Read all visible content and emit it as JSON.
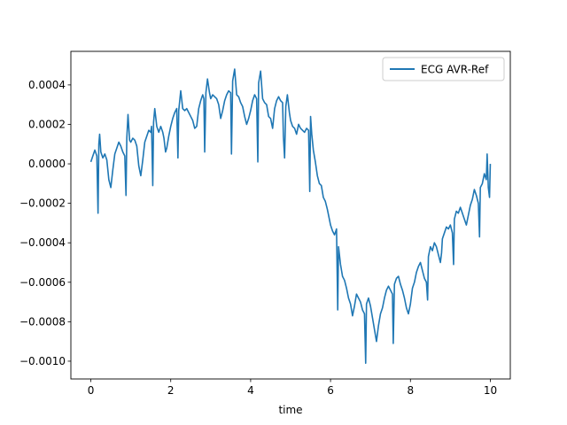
{
  "chart_data": {
    "type": "line",
    "title": "",
    "xlabel": "time",
    "ylabel": "",
    "xlim": [
      -0.5,
      10.5
    ],
    "ylim": [
      -0.00109,
      0.00057
    ],
    "xticks": [
      0,
      2,
      4,
      6,
      8,
      10
    ],
    "xtick_labels": [
      "0",
      "2",
      "4",
      "6",
      "8",
      "10"
    ],
    "yticks": [
      0.0004,
      0.0002,
      0.0,
      -0.0002,
      -0.0004,
      -0.0006,
      -0.0008,
      -0.001
    ],
    "ytick_labels": [
      "0.0004",
      "0.0002",
      "0.0000",
      "−0.0002",
      "−0.0004",
      "−0.0006",
      "−0.0008",
      "−0.0010"
    ],
    "grid": false,
    "legend": {
      "position": "top-right",
      "entries": [
        "ECG AVR-Ref"
      ]
    },
    "series": [
      {
        "name": "ECG AVR-Ref",
        "color": "#1f77b4",
        "points": [
          [
            0.0,
            1e-05
          ],
          [
            0.05,
            4e-05
          ],
          [
            0.1,
            7e-05
          ],
          [
            0.15,
            4e-05
          ],
          [
            0.18,
            -0.00025
          ],
          [
            0.2,
            0.0001
          ],
          [
            0.22,
            0.00015
          ],
          [
            0.25,
            6e-05
          ],
          [
            0.3,
            3e-05
          ],
          [
            0.35,
            5e-05
          ],
          [
            0.4,
            2e-05
          ],
          [
            0.45,
            -8e-05
          ],
          [
            0.5,
            -0.00012
          ],
          [
            0.55,
            -3e-05
          ],
          [
            0.6,
            5e-05
          ],
          [
            0.65,
            8e-05
          ],
          [
            0.7,
            0.00011
          ],
          [
            0.75,
            9e-05
          ],
          [
            0.8,
            6e-05
          ],
          [
            0.85,
            4e-05
          ],
          [
            0.88,
            -0.00016
          ],
          [
            0.9,
            0.00013
          ],
          [
            0.93,
            0.00025
          ],
          [
            0.97,
            0.00012
          ],
          [
            1.0,
            0.00011
          ],
          [
            1.05,
            0.00013
          ],
          [
            1.1,
            0.00012
          ],
          [
            1.15,
            9e-05
          ],
          [
            1.2,
            -1e-05
          ],
          [
            1.25,
            -6e-05
          ],
          [
            1.3,
            2e-05
          ],
          [
            1.35,
            0.00011
          ],
          [
            1.4,
            0.00014
          ],
          [
            1.45,
            0.00017
          ],
          [
            1.5,
            0.00016
          ],
          [
            1.52,
            0.00019
          ],
          [
            1.55,
            -0.00011
          ],
          [
            1.57,
            0.00021
          ],
          [
            1.6,
            0.00028
          ],
          [
            1.65,
            0.00019
          ],
          [
            1.7,
            0.00016
          ],
          [
            1.75,
            0.00019
          ],
          [
            1.8,
            0.00016
          ],
          [
            1.83,
            0.00013
          ],
          [
            1.87,
            6e-05
          ],
          [
            1.9,
            8e-05
          ],
          [
            1.95,
            0.00014
          ],
          [
            2.0,
            0.00019
          ],
          [
            2.05,
            0.00023
          ],
          [
            2.1,
            0.00026
          ],
          [
            2.15,
            0.00028
          ],
          [
            2.18,
            3e-05
          ],
          [
            2.2,
            0.00027
          ],
          [
            2.25,
            0.00037
          ],
          [
            2.3,
            0.00028
          ],
          [
            2.35,
            0.00027
          ],
          [
            2.4,
            0.00028
          ],
          [
            2.45,
            0.00026
          ],
          [
            2.5,
            0.00024
          ],
          [
            2.55,
            0.00022
          ],
          [
            2.6,
            0.00018
          ],
          [
            2.65,
            0.00019
          ],
          [
            2.7,
            0.00028
          ],
          [
            2.75,
            0.00032
          ],
          [
            2.8,
            0.00035
          ],
          [
            2.83,
            0.00033
          ],
          [
            2.85,
            6e-05
          ],
          [
            2.88,
            0.00036
          ],
          [
            2.92,
            0.00043
          ],
          [
            2.97,
            0.00036
          ],
          [
            3.0,
            0.00033
          ],
          [
            3.05,
            0.00035
          ],
          [
            3.1,
            0.00034
          ],
          [
            3.15,
            0.00033
          ],
          [
            3.2,
            0.0003
          ],
          [
            3.25,
            0.00023
          ],
          [
            3.3,
            0.00027
          ],
          [
            3.35,
            0.00032
          ],
          [
            3.4,
            0.00035
          ],
          [
            3.45,
            0.00037
          ],
          [
            3.5,
            0.00036
          ],
          [
            3.52,
            5e-05
          ],
          [
            3.55,
            0.00042
          ],
          [
            3.6,
            0.00048
          ],
          [
            3.65,
            0.00035
          ],
          [
            3.7,
            0.00034
          ],
          [
            3.75,
            0.00031
          ],
          [
            3.8,
            0.00029
          ],
          [
            3.85,
            0.00024
          ],
          [
            3.9,
            0.0002
          ],
          [
            3.95,
            0.00023
          ],
          [
            4.0,
            0.00027
          ],
          [
            4.05,
            0.00032
          ],
          [
            4.1,
            0.00035
          ],
          [
            4.15,
            0.00033
          ],
          [
            4.18,
            1e-05
          ],
          [
            4.2,
            0.00041
          ],
          [
            4.25,
            0.00047
          ],
          [
            4.3,
            0.00033
          ],
          [
            4.35,
            0.00031
          ],
          [
            4.4,
            0.0003
          ],
          [
            4.45,
            0.00024
          ],
          [
            4.5,
            0.00023
          ],
          [
            4.55,
            0.00018
          ],
          [
            4.6,
            0.00028
          ],
          [
            4.65,
            0.00032
          ],
          [
            4.7,
            0.00034
          ],
          [
            4.75,
            0.00032
          ],
          [
            4.8,
            0.00031
          ],
          [
            4.82,
            0.00014
          ],
          [
            4.85,
            3e-05
          ],
          [
            4.88,
            0.00029
          ],
          [
            4.92,
            0.00035
          ],
          [
            4.97,
            0.00026
          ],
          [
            5.0,
            0.00022
          ],
          [
            5.05,
            0.00019
          ],
          [
            5.1,
            0.00018
          ],
          [
            5.15,
            0.00015
          ],
          [
            5.2,
            0.0002
          ],
          [
            5.25,
            0.00018
          ],
          [
            5.3,
            0.00017
          ],
          [
            5.35,
            0.00016
          ],
          [
            5.4,
            0.00018
          ],
          [
            5.45,
            0.00017
          ],
          [
            5.48,
            -0.00014
          ],
          [
            5.5,
            0.00024
          ],
          [
            5.53,
            0.00015
          ],
          [
            5.57,
            7e-05
          ],
          [
            5.62,
            1e-05
          ],
          [
            5.67,
            -6e-05
          ],
          [
            5.72,
            -0.0001
          ],
          [
            5.77,
            -0.00011
          ],
          [
            5.82,
            -0.00017
          ],
          [
            5.87,
            -0.00019
          ],
          [
            5.92,
            -0.00023
          ],
          [
            5.97,
            -0.00028
          ],
          [
            6.0,
            -0.00031
          ],
          [
            6.05,
            -0.00034
          ],
          [
            6.1,
            -0.00036
          ],
          [
            6.15,
            -0.00033
          ],
          [
            6.18,
            -0.00074
          ],
          [
            6.2,
            -0.00042
          ],
          [
            6.25,
            -0.00051
          ],
          [
            6.3,
            -0.00057
          ],
          [
            6.35,
            -0.00059
          ],
          [
            6.4,
            -0.00063
          ],
          [
            6.45,
            -0.00068
          ],
          [
            6.5,
            -0.00071
          ],
          [
            6.55,
            -0.00077
          ],
          [
            6.6,
            -0.00072
          ],
          [
            6.65,
            -0.00066
          ],
          [
            6.7,
            -0.00068
          ],
          [
            6.75,
            -0.0007
          ],
          [
            6.8,
            -0.00074
          ],
          [
            6.85,
            -0.00076
          ],
          [
            6.88,
            -0.00101
          ],
          [
            6.9,
            -0.00071
          ],
          [
            6.95,
            -0.00068
          ],
          [
            7.0,
            -0.00072
          ],
          [
            7.05,
            -0.00078
          ],
          [
            7.1,
            -0.00084
          ],
          [
            7.15,
            -0.0009
          ],
          [
            7.2,
            -0.00082
          ],
          [
            7.25,
            -0.00076
          ],
          [
            7.3,
            -0.00073
          ],
          [
            7.35,
            -0.00068
          ],
          [
            7.4,
            -0.00064
          ],
          [
            7.45,
            -0.00062
          ],
          [
            7.5,
            -0.00064
          ],
          [
            7.55,
            -0.00066
          ],
          [
            7.57,
            -0.00091
          ],
          [
            7.6,
            -0.00061
          ],
          [
            7.65,
            -0.00058
          ],
          [
            7.7,
            -0.00057
          ],
          [
            7.75,
            -0.00061
          ],
          [
            7.8,
            -0.00064
          ],
          [
            7.85,
            -0.00068
          ],
          [
            7.9,
            -0.00073
          ],
          [
            7.95,
            -0.00076
          ],
          [
            8.0,
            -0.00071
          ],
          [
            8.05,
            -0.00063
          ],
          [
            8.1,
            -0.0006
          ],
          [
            8.15,
            -0.00055
          ],
          [
            8.2,
            -0.00052
          ],
          [
            8.25,
            -0.0005
          ],
          [
            8.3,
            -0.00054
          ],
          [
            8.35,
            -0.00058
          ],
          [
            8.4,
            -0.0006
          ],
          [
            8.43,
            -0.00069
          ],
          [
            8.45,
            -0.00047
          ],
          [
            8.5,
            -0.00042
          ],
          [
            8.55,
            -0.00044
          ],
          [
            8.6,
            -0.0004
          ],
          [
            8.65,
            -0.00042
          ],
          [
            8.7,
            -0.00046
          ],
          [
            8.75,
            -0.0005
          ],
          [
            8.78,
            -0.00045
          ],
          [
            8.8,
            -0.00038
          ],
          [
            8.85,
            -0.00035
          ],
          [
            8.9,
            -0.00032
          ],
          [
            8.95,
            -0.00033
          ],
          [
            9.0,
            -0.00031
          ],
          [
            9.05,
            -0.00035
          ],
          [
            9.08,
            -0.00051
          ],
          [
            9.1,
            -0.00028
          ],
          [
            9.15,
            -0.00024
          ],
          [
            9.2,
            -0.00025
          ],
          [
            9.25,
            -0.00022
          ],
          [
            9.3,
            -0.00025
          ],
          [
            9.35,
            -0.00028
          ],
          [
            9.4,
            -0.00031
          ],
          [
            9.45,
            -0.00026
          ],
          [
            9.5,
            -0.00021
          ],
          [
            9.55,
            -0.00018
          ],
          [
            9.6,
            -0.00013
          ],
          [
            9.65,
            -0.00016
          ],
          [
            9.7,
            -0.0002
          ],
          [
            9.73,
            -0.00037
          ],
          [
            9.75,
            -0.00012
          ],
          [
            9.8,
            -0.0001
          ],
          [
            9.85,
            -5e-05
          ],
          [
            9.9,
            -8e-05
          ],
          [
            9.92,
            5e-05
          ],
          [
            9.95,
            -0.00012
          ],
          [
            9.98,
            -0.00017
          ],
          [
            10.0,
            0.0
          ]
        ]
      }
    ]
  }
}
